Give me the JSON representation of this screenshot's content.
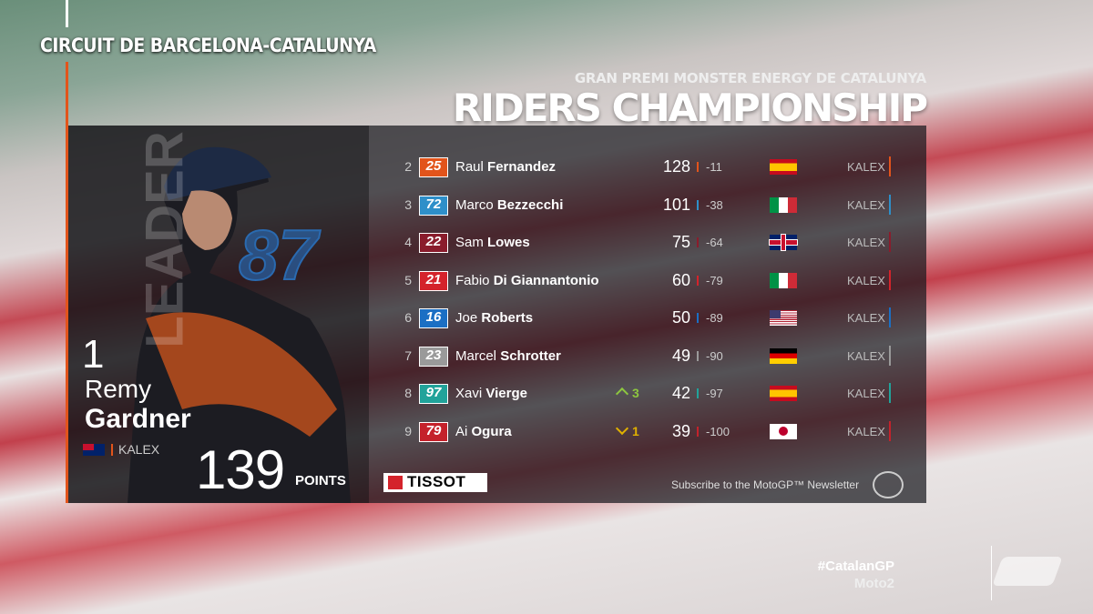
{
  "header": {
    "circuit": "CIRCUIT DE BARCELONA-CATALUNYA",
    "event": "GRAN PREMI MONSTER ENERGY DE CATALUNYA",
    "title": "RIDERS CHAMPIONSHIP"
  },
  "leader": {
    "label": "LEADER",
    "position": 1,
    "first_name": "Remy",
    "last_name": "Gardner",
    "team": "KALEX",
    "flag": "au",
    "number": "87",
    "points": 139,
    "points_label": "POINTS"
  },
  "table": {
    "rows": [
      {
        "position": 2,
        "number": "25",
        "color": "#e2541b",
        "first_name": "Raul",
        "last_name": "Fernandez",
        "points": 128,
        "gap": -11,
        "flag": "es",
        "team": "KALEX"
      },
      {
        "position": 3,
        "number": "72",
        "color": "#2e8fc9",
        "first_name": "Marco",
        "last_name": "Bezzecchi",
        "points": 101,
        "gap": -38,
        "flag": "it",
        "team": "KALEX"
      },
      {
        "position": 4,
        "number": "22",
        "color": "#8a1c2c",
        "first_name": "Sam",
        "last_name": "Lowes",
        "points": 75,
        "gap": -64,
        "flag": "gb",
        "team": "KALEX"
      },
      {
        "position": 5,
        "number": "21",
        "color": "#d4232b",
        "first_name": "Fabio",
        "last_name": "Di Giannantonio",
        "points": 60,
        "gap": -79,
        "flag": "it",
        "team": "KALEX"
      },
      {
        "position": 6,
        "number": "16",
        "color": "#1b6fc4",
        "first_name": "Joe",
        "last_name": "Roberts",
        "points": 50,
        "gap": -89,
        "flag": "us",
        "team": "KALEX"
      },
      {
        "position": 7,
        "number": "23",
        "color": "#9a9a9a",
        "first_name": "Marcel",
        "last_name": "Schrotter",
        "points": 49,
        "gap": -90,
        "flag": "de",
        "team": "KALEX"
      },
      {
        "position": 8,
        "number": "97",
        "color": "#21a39a",
        "first_name": "Xavi",
        "last_name": "Vierge",
        "change": {
          "direction": "up",
          "value": 3
        },
        "points": 42,
        "gap": -97,
        "flag": "es",
        "team": "KALEX"
      },
      {
        "position": 9,
        "number": "79",
        "color": "#c4222b",
        "first_name": "Ai",
        "last_name": "Ogura",
        "change": {
          "direction": "down",
          "value": 1
        },
        "points": 39,
        "gap": -100,
        "flag": "jp",
        "team": "KALEX"
      }
    ]
  },
  "footer": {
    "sponsor": "TISSOT",
    "subscribe": "Subscribe to the MotoGP™ Newsletter",
    "hashtag": "#CatalanGP",
    "class": "Moto2"
  }
}
